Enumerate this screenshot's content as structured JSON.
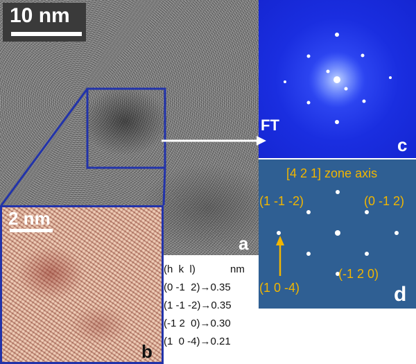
{
  "panel_a": {
    "scale_label": "10 nm",
    "panel_label": "a"
  },
  "panel_b": {
    "scale_label": "2 nm",
    "panel_label": "b"
  },
  "panel_c": {
    "transform_label": "FT",
    "panel_label": "c"
  },
  "panel_d": {
    "zone_axis": "[4 2 1] zone axis",
    "panel_label": "d",
    "indices": {
      "top_left": "(1 -1 -2)",
      "top_right": "(0 -1 2)",
      "bottom_right": "(-1 2 0)",
      "bottom_left": "(1 0 -4)"
    }
  },
  "spacing_table": {
    "header_hkl": "(h  k  l)",
    "header_unit": "nm",
    "rows": [
      "(0 -1  2)→0.35",
      "(1 -1 -2)→0.35",
      "(-1 2  0)→0.30",
      "(1  0 -4)→0.21"
    ]
  },
  "colors": {
    "inset_outline": "#2233aa",
    "index_text": "#f2b600",
    "ft_background": "#1a2ee0",
    "pattern_background": "#2f5f93"
  }
}
